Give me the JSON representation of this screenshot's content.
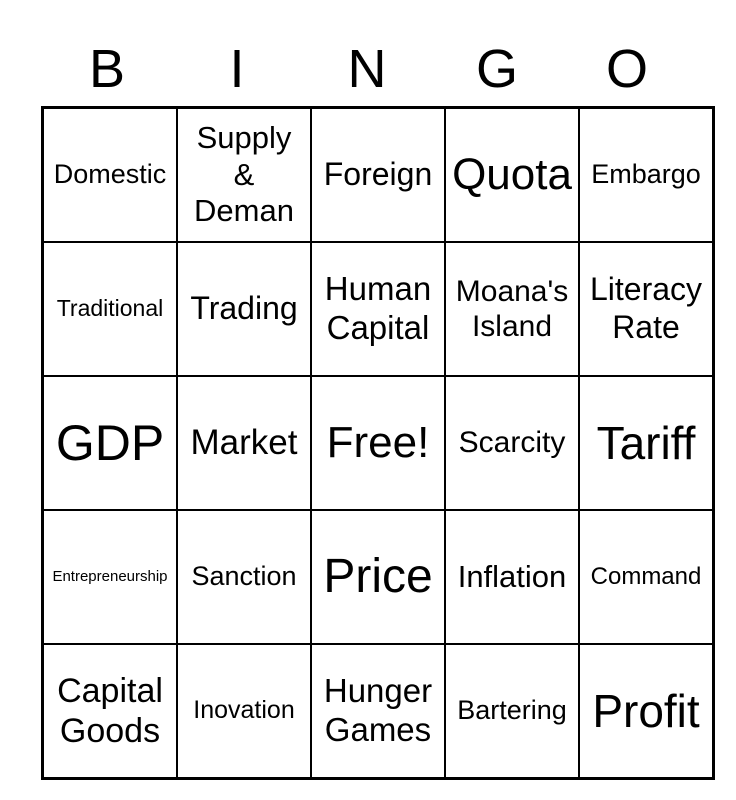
{
  "card_title": "BINGO",
  "header": {
    "letters": [
      "B",
      "I",
      "N",
      "G",
      "O"
    ]
  },
  "grid": {
    "rows": [
      {
        "cells": [
          {
            "label": "Domestic"
          },
          {
            "label": "Supply\n&\nDeman"
          },
          {
            "label": "Foreign"
          },
          {
            "label": "Quota"
          },
          {
            "label": "Embargo"
          }
        ]
      },
      {
        "cells": [
          {
            "label": "Traditional"
          },
          {
            "label": "Trading"
          },
          {
            "label": "Human\nCapital"
          },
          {
            "label": "Moana's\nIsland"
          },
          {
            "label": "Literacy\nRate"
          }
        ]
      },
      {
        "cells": [
          {
            "label": "GDP"
          },
          {
            "label": "Market"
          },
          {
            "label": "Free!"
          },
          {
            "label": "Scarcity"
          },
          {
            "label": "Tariff"
          }
        ]
      },
      {
        "cells": [
          {
            "label": "Entrepreneurship"
          },
          {
            "label": "Sanction"
          },
          {
            "label": "Price"
          },
          {
            "label": "Inflation"
          },
          {
            "label": "Command"
          }
        ]
      },
      {
        "cells": [
          {
            "label": "Capital\nGoods"
          },
          {
            "label": "Inovation"
          },
          {
            "label": "Hunger\nGames"
          },
          {
            "label": "Bartering"
          },
          {
            "label": "Profit"
          }
        ]
      }
    ]
  },
  "colors": {
    "text": "#000000",
    "grid_border": "#000000",
    "background": "#ffffff"
  }
}
